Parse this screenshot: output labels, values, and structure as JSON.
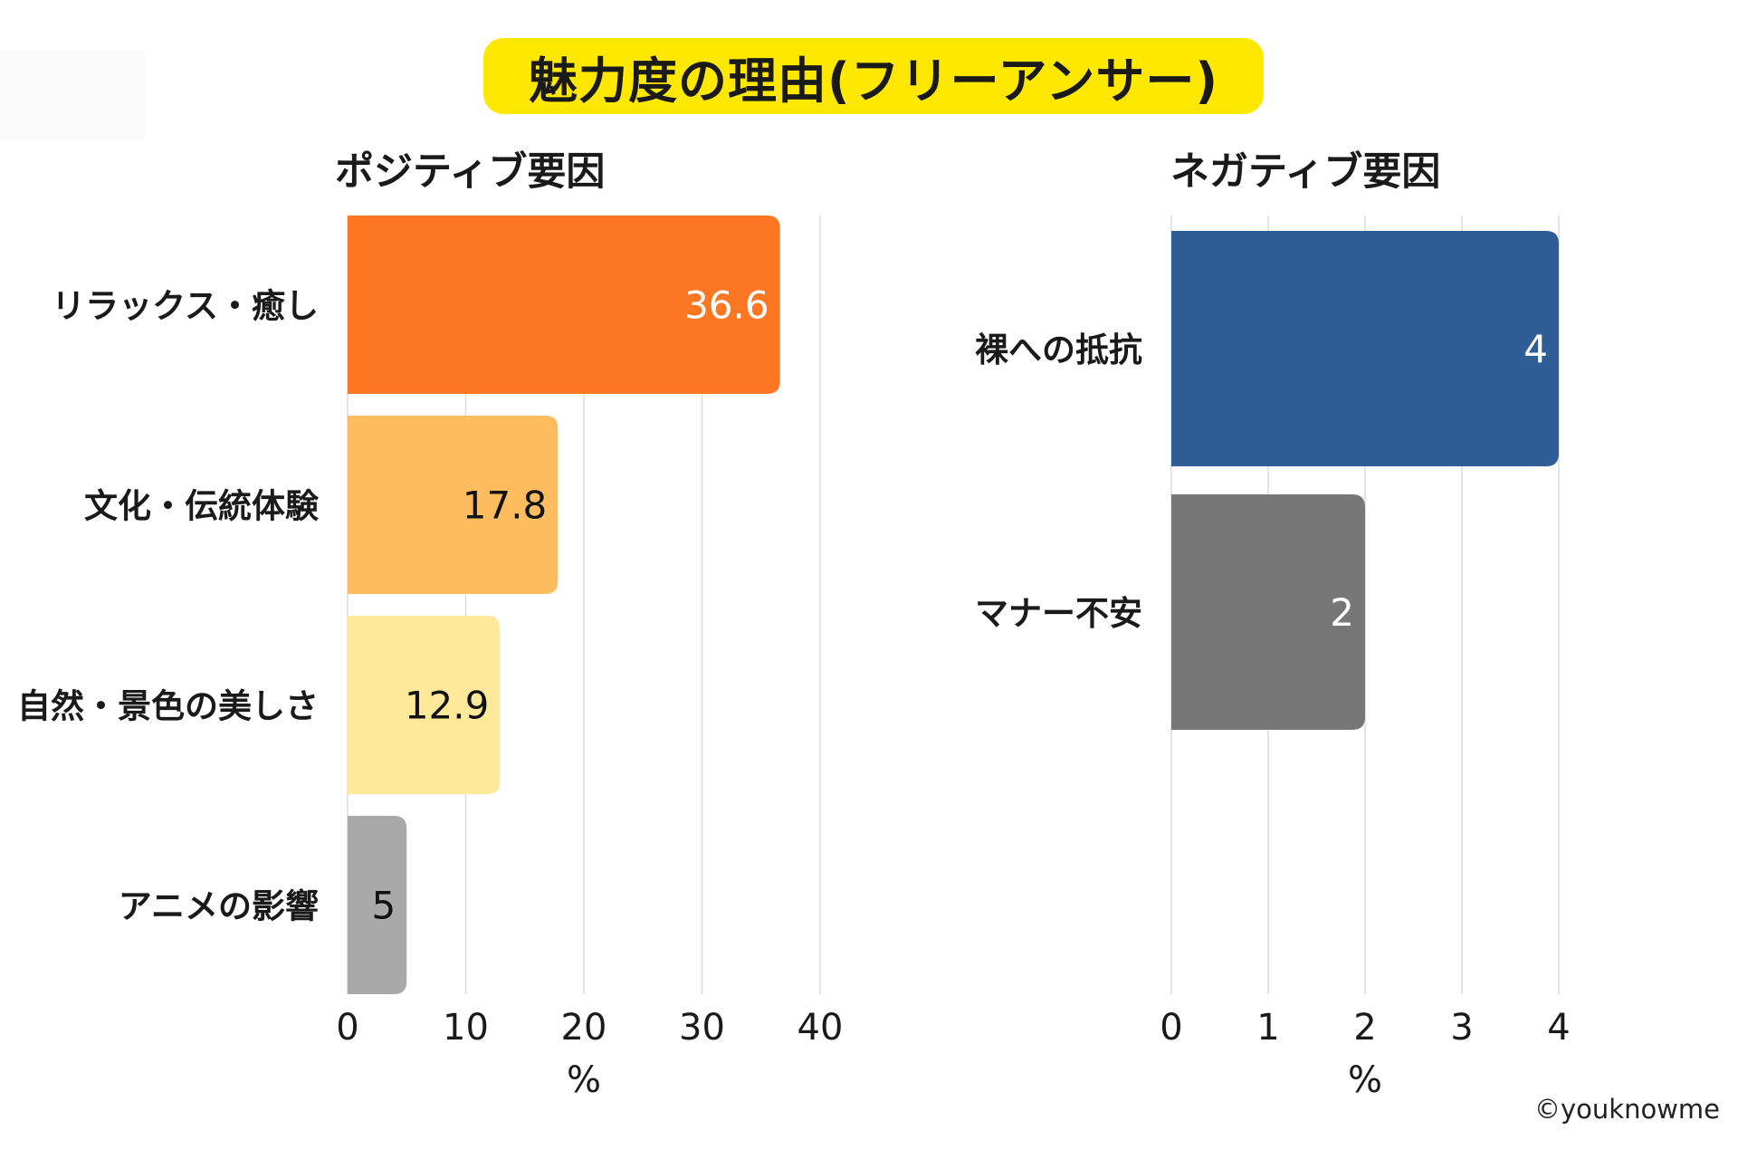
{
  "title": "魅力度の理由(フリーアンサー)",
  "copyright": "©youknowme",
  "chart_data": [
    {
      "type": "bar",
      "orientation": "horizontal",
      "title": "ポジティブ要因",
      "categories": [
        "リラックス・癒し",
        "文化・伝統体験",
        "自然・景色の美しさ",
        "アニメの影響"
      ],
      "values": [
        36.6,
        17.8,
        12.9,
        5
      ],
      "value_labels": [
        "36.6",
        "17.8",
        "12.9",
        "5"
      ],
      "colors": [
        "#fd7722",
        "#fdbd5f",
        "#fee99b",
        "#a9a9a9"
      ],
      "label_colors": [
        "#ffffff",
        "#111111",
        "#111111",
        "#111111"
      ],
      "xlabel": "%",
      "xlim": [
        0,
        40
      ],
      "xticks": [
        "0",
        "10",
        "20",
        "30",
        "40"
      ],
      "grid": true
    },
    {
      "type": "bar",
      "orientation": "horizontal",
      "title": "ネガティブ要因",
      "categories": [
        "裸への抵抗",
        "マナー不安"
      ],
      "values": [
        4,
        2
      ],
      "value_labels": [
        "4",
        "2"
      ],
      "colors": [
        "#2e5e95",
        "#777777"
      ],
      "label_colors": [
        "#ffffff",
        "#ffffff"
      ],
      "xlabel": "%",
      "xlim": [
        0,
        4
      ],
      "xticks": [
        "0",
        "1",
        "2",
        "3",
        "4"
      ],
      "grid": true
    }
  ]
}
